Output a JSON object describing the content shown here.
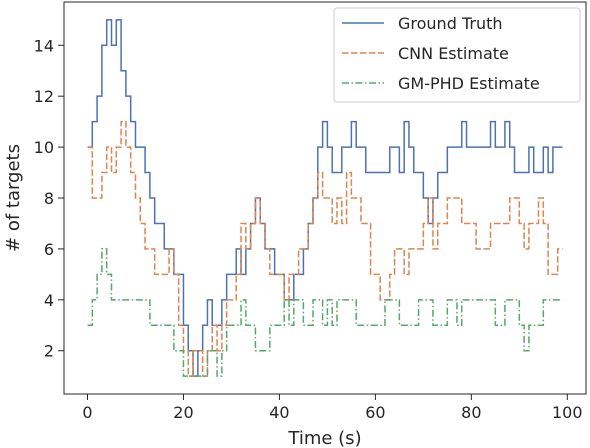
{
  "chart_data": {
    "type": "line",
    "title": "",
    "xlabel": "Time (s)",
    "ylabel": "# of targets",
    "xlim": [
      -4.9,
      103.9
    ],
    "ylim": [
      0.3,
      15.7
    ],
    "xticks": [
      0,
      20,
      40,
      60,
      80,
      100
    ],
    "yticks": [
      2,
      4,
      6,
      8,
      10,
      12,
      14
    ],
    "grid": false,
    "legend_position": "top-right",
    "x": [
      0,
      1,
      2,
      3,
      4,
      5,
      6,
      7,
      8,
      9,
      10,
      11,
      12,
      13,
      14,
      15,
      16,
      17,
      18,
      19,
      20,
      21,
      22,
      23,
      24,
      25,
      26,
      27,
      28,
      29,
      30,
      31,
      32,
      33,
      34,
      35,
      36,
      37,
      38,
      39,
      40,
      41,
      42,
      43,
      44,
      45,
      46,
      47,
      48,
      49,
      50,
      51,
      52,
      53,
      54,
      55,
      56,
      57,
      58,
      59,
      60,
      61,
      62,
      63,
      64,
      65,
      66,
      67,
      68,
      69,
      70,
      71,
      72,
      73,
      74,
      75,
      76,
      77,
      78,
      79,
      80,
      81,
      82,
      83,
      84,
      85,
      86,
      87,
      88,
      89,
      90,
      91,
      92,
      93,
      94,
      95,
      96,
      97,
      98,
      99
    ],
    "series": [
      {
        "name": "Ground Truth",
        "color": "#4c72b0",
        "style": "solid",
        "values": [
          10,
          11,
          12,
          14,
          15,
          14,
          15,
          13,
          12,
          11,
          10,
          10,
          9,
          8,
          7,
          7,
          6,
          6,
          5,
          5,
          3,
          2,
          1,
          2,
          3,
          4,
          3,
          3,
          4,
          5,
          5,
          6,
          5,
          6,
          7,
          8,
          7,
          6,
          6,
          5,
          5,
          4,
          4,
          5,
          5,
          6,
          7,
          8,
          10,
          11,
          10,
          9,
          9,
          10,
          10,
          11,
          10,
          10,
          9,
          9,
          9,
          9,
          9,
          10,
          10,
          9,
          11,
          10,
          9,
          9,
          8,
          7,
          8,
          9,
          9,
          10,
          10,
          10,
          11,
          10,
          10,
          10,
          10,
          10,
          11,
          10,
          10,
          11,
          10,
          9,
          9,
          9,
          10,
          9,
          9,
          10,
          9,
          10,
          10,
          10
        ]
      },
      {
        "name": "CNN Estimate",
        "color": "#dd8452",
        "style": "dashed",
        "values": [
          10,
          8,
          8,
          9,
          10,
          9,
          10,
          11,
          10,
          9,
          8,
          7,
          6,
          6,
          5,
          5,
          5,
          6,
          5,
          3,
          2,
          1,
          2,
          2,
          1,
          2,
          3,
          2,
          3,
          4,
          4,
          5,
          7,
          6,
          7,
          8,
          7,
          6,
          5,
          5,
          5,
          4,
          5,
          5,
          6,
          6,
          7,
          8,
          9,
          8,
          8,
          7,
          8,
          7,
          9,
          8,
          8,
          7,
          7,
          5,
          5,
          4,
          4,
          5,
          6,
          6,
          5,
          6,
          6,
          6,
          7,
          8,
          6,
          7,
          7,
          8,
          8,
          8,
          7,
          7,
          7,
          6,
          6,
          6,
          7,
          7,
          7,
          7,
          8,
          8,
          7,
          6,
          7,
          7,
          8,
          7,
          5,
          5,
          6,
          6
        ]
      },
      {
        "name": "GM-PHD Estimate",
        "color": "#55a868",
        "style": "dashdot",
        "values": [
          3,
          4,
          5,
          6,
          5,
          4,
          4,
          4,
          4,
          4,
          4,
          4,
          4,
          3,
          3,
          3,
          3,
          3,
          2,
          2,
          1,
          1,
          1,
          1,
          1,
          2,
          2,
          1,
          2,
          3,
          3,
          3,
          4,
          3,
          3,
          2,
          2,
          2,
          3,
          3,
          3,
          4,
          3,
          4,
          4,
          3,
          3,
          4,
          4,
          3,
          4,
          3,
          4,
          4,
          4,
          4,
          3,
          3,
          3,
          3,
          3,
          3,
          4,
          4,
          4,
          3,
          3,
          3,
          3,
          4,
          4,
          4,
          3,
          3,
          3,
          4,
          4,
          3,
          4,
          4,
          4,
          4,
          4,
          4,
          4,
          3,
          3,
          4,
          4,
          4,
          3,
          2,
          3,
          3,
          3,
          4,
          4,
          4,
          4,
          4
        ]
      }
    ]
  }
}
